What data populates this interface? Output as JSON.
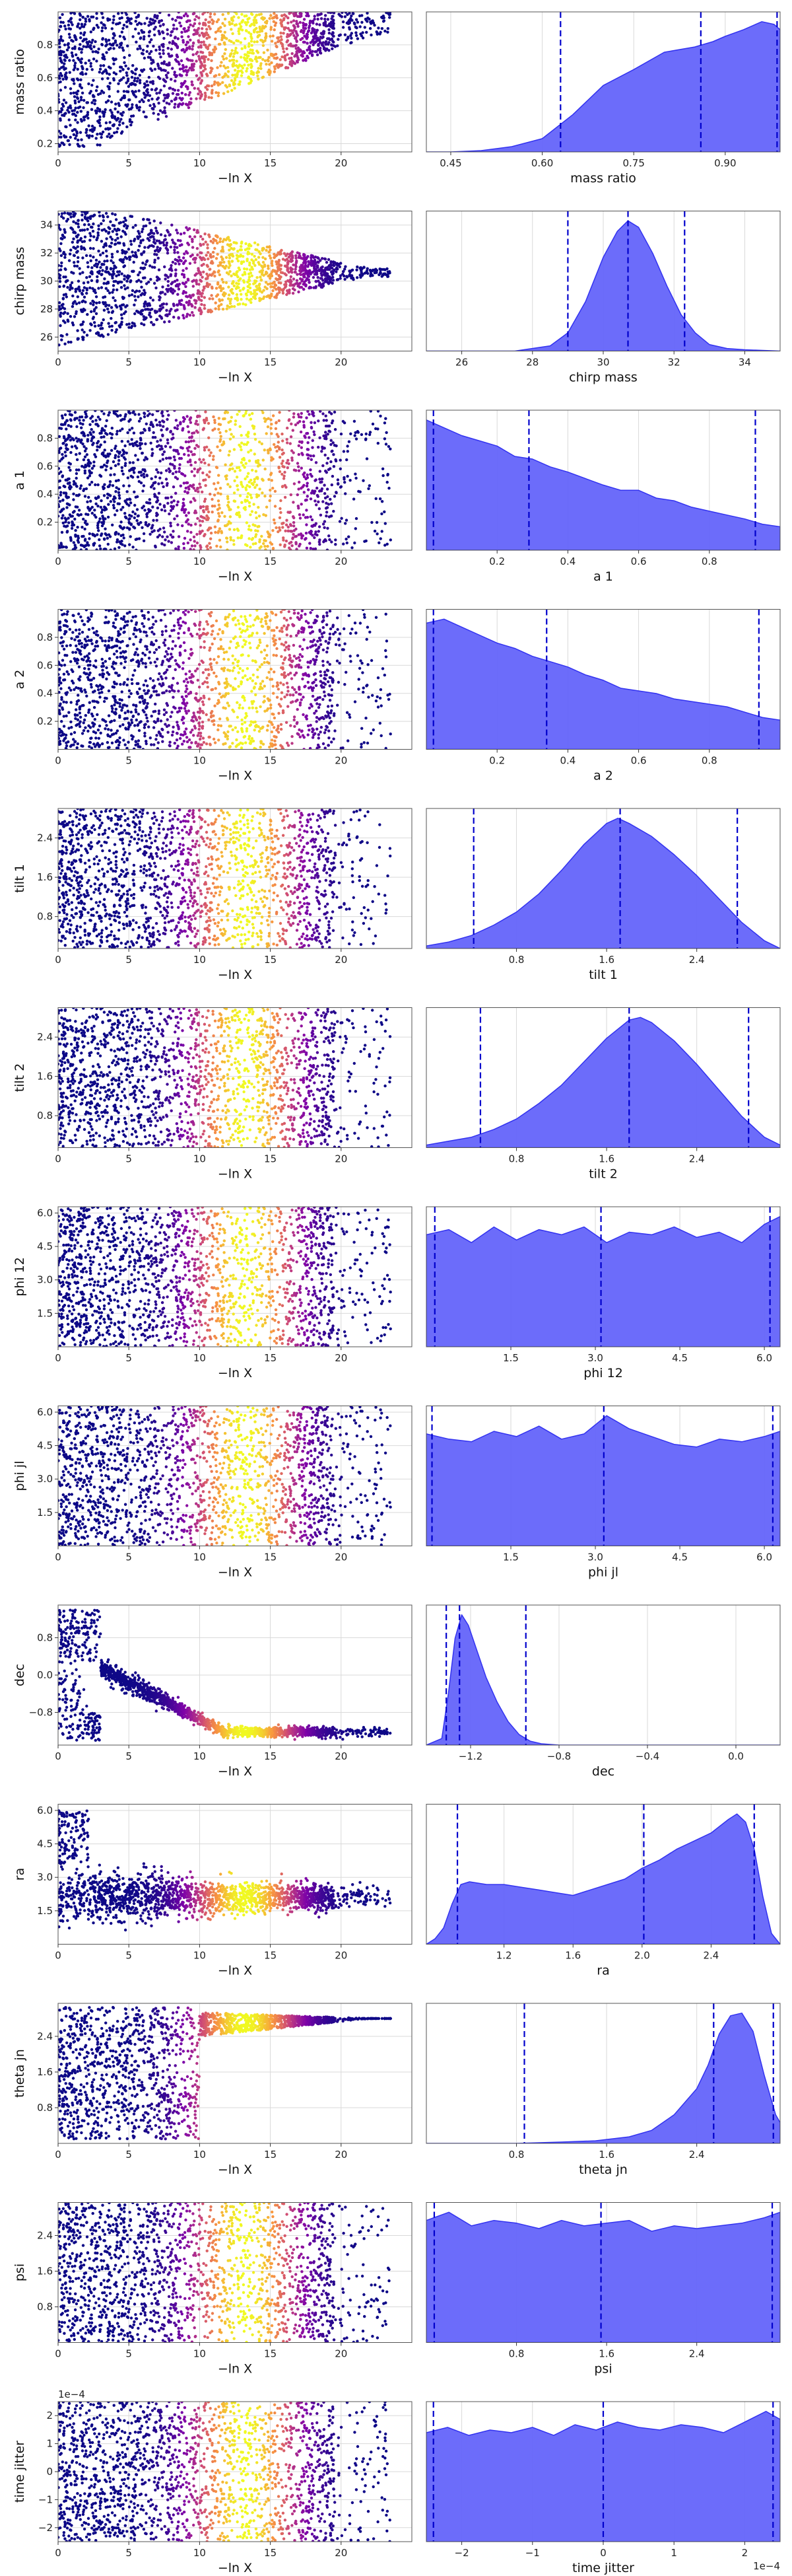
{
  "figure": {
    "x_axis_label": "−ln X",
    "colors": {
      "axes_bg": "#ffffff",
      "frame": "#555555",
      "grid": "#d9d9d9",
      "kde_fill": "#6464fa",
      "kde_edge": "#3232f0",
      "quantile": "#0000cc"
    },
    "trace_x_ticks": [
      "0",
      "5",
      "10",
      "15",
      "20"
    ],
    "trace_x_range": [
      0,
      25
    ]
  },
  "chart_data": [
    {
      "param": "mass ratio",
      "type": "area",
      "trace_ylabel": "mass ratio",
      "trace": {
        "ylim": [
          0.15,
          1.0
        ],
        "yticks": [
          "0.2",
          "0.4",
          "0.6",
          "0.8"
        ],
        "ytick_vals": [
          0.2,
          0.4,
          0.6,
          0.8
        ],
        "shape": "wedge_up",
        "lo_start": 0.62,
        "hi_start": 1.0,
        "lo_end": 0.95,
        "hi_end": 1.0
      },
      "kde": {
        "xlabel": "mass ratio",
        "xlim": [
          0.41,
          0.99
        ],
        "xticks": [
          "0.45",
          "0.60",
          "0.75",
          "0.90"
        ],
        "xtick_vals": [
          0.45,
          0.6,
          0.75,
          0.9
        ],
        "x": [
          0.41,
          0.45,
          0.5,
          0.55,
          0.6,
          0.65,
          0.7,
          0.75,
          0.8,
          0.85,
          0.88,
          0.9,
          0.93,
          0.96,
          0.98,
          0.99
        ],
        "density": [
          0.0,
          0.0,
          0.01,
          0.04,
          0.1,
          0.28,
          0.5,
          0.62,
          0.75,
          0.79,
          0.83,
          0.87,
          0.92,
          0.98,
          0.96,
          0.92
        ],
        "quantiles": [
          0.63,
          0.86,
          0.985
        ]
      }
    },
    {
      "param": "chirp mass",
      "type": "area",
      "trace_ylabel": "chirp mass",
      "trace": {
        "ylim": [
          25.0,
          35.0
        ],
        "yticks": [
          "26",
          "28",
          "30",
          "32",
          "34"
        ],
        "ytick_vals": [
          26,
          28,
          30,
          32,
          34
        ],
        "shape": "funnel",
        "lo_start": 25.0,
        "hi_start": 35.0,
        "lo_end": 30.3,
        "hi_end": 30.9
      },
      "kde": {
        "xlabel": "chirp mass",
        "xlim": [
          25.0,
          35.0
        ],
        "xticks": [
          "26",
          "28",
          "30",
          "32",
          "34"
        ],
        "xtick_vals": [
          26,
          28,
          30,
          32,
          34
        ],
        "x": [
          25,
          27.5,
          28.5,
          29.0,
          29.5,
          30.0,
          30.4,
          30.7,
          31.0,
          31.4,
          31.8,
          32.2,
          32.6,
          33.0,
          33.5,
          34,
          35
        ],
        "density": [
          0.0,
          0.0,
          0.04,
          0.14,
          0.38,
          0.72,
          0.92,
          1.0,
          0.95,
          0.75,
          0.5,
          0.28,
          0.14,
          0.05,
          0.02,
          0.01,
          0.0
        ],
        "quantiles": [
          29.0,
          30.7,
          32.3
        ]
      }
    },
    {
      "param": "a 1",
      "type": "area",
      "trace_ylabel": "a 1",
      "trace": {
        "ylim": [
          0.0,
          1.0
        ],
        "yticks": [
          "0.2",
          "0.4",
          "0.6",
          "0.8"
        ],
        "ytick_vals": [
          0.2,
          0.4,
          0.6,
          0.8
        ],
        "shape": "uniform"
      },
      "kde": {
        "xlabel": "a 1",
        "xlim": [
          0.0,
          1.0
        ],
        "xticks": [
          "0.2",
          "0.4",
          "0.6",
          "0.8"
        ],
        "xtick_vals": [
          0.2,
          0.4,
          0.6,
          0.8
        ],
        "x": [
          0.0,
          0.05,
          0.1,
          0.15,
          0.2,
          0.25,
          0.3,
          0.35,
          0.4,
          0.45,
          0.5,
          0.55,
          0.6,
          0.65,
          0.7,
          0.75,
          0.8,
          0.85,
          0.9,
          0.95,
          1.0
        ],
        "density": [
          1.0,
          0.94,
          0.88,
          0.84,
          0.8,
          0.72,
          0.7,
          0.64,
          0.6,
          0.55,
          0.5,
          0.46,
          0.46,
          0.4,
          0.38,
          0.33,
          0.3,
          0.27,
          0.24,
          0.2,
          0.18
        ],
        "quantiles": [
          0.02,
          0.29,
          0.93
        ]
      }
    },
    {
      "param": "a 2",
      "type": "area",
      "trace_ylabel": "a 2",
      "trace": {
        "ylim": [
          0.0,
          1.0
        ],
        "yticks": [
          "0.2",
          "0.4",
          "0.6",
          "0.8"
        ],
        "ytick_vals": [
          0.2,
          0.4,
          0.6,
          0.8
        ],
        "shape": "uniform"
      },
      "kde": {
        "xlabel": "a 2",
        "xlim": [
          0.0,
          1.0
        ],
        "xticks": [
          "0.2",
          "0.4",
          "0.6",
          "0.8"
        ],
        "xtick_vals": [
          0.2,
          0.4,
          0.6,
          0.8
        ],
        "x": [
          0.0,
          0.05,
          0.1,
          0.15,
          0.2,
          0.25,
          0.3,
          0.35,
          0.4,
          0.45,
          0.5,
          0.55,
          0.6,
          0.65,
          0.7,
          0.75,
          0.8,
          0.85,
          0.9,
          0.95,
          1.0
        ],
        "density": [
          0.95,
          0.98,
          0.92,
          0.86,
          0.8,
          0.76,
          0.7,
          0.66,
          0.62,
          0.56,
          0.52,
          0.46,
          0.44,
          0.42,
          0.38,
          0.36,
          0.34,
          0.32,
          0.28,
          0.24,
          0.22
        ],
        "quantiles": [
          0.02,
          0.34,
          0.94
        ]
      }
    },
    {
      "param": "tilt 1",
      "type": "area",
      "trace_ylabel": "tilt 1",
      "trace": {
        "ylim": [
          0.15,
          3.0
        ],
        "yticks": [
          "0.8",
          "1.6",
          "2.4"
        ],
        "ytick_vals": [
          0.8,
          1.6,
          2.4
        ],
        "shape": "uniform"
      },
      "kde": {
        "xlabel": "tilt 1",
        "xlim": [
          0.0,
          3.14
        ],
        "xticks": [
          "0.8",
          "1.6",
          "2.4"
        ],
        "xtick_vals": [
          0.8,
          1.6,
          2.4
        ],
        "x": [
          0.0,
          0.2,
          0.4,
          0.6,
          0.8,
          1.0,
          1.2,
          1.4,
          1.6,
          1.7,
          1.8,
          2.0,
          2.2,
          2.4,
          2.6,
          2.8,
          3.0,
          3.14
        ],
        "density": [
          0.02,
          0.05,
          0.1,
          0.18,
          0.28,
          0.42,
          0.6,
          0.8,
          0.96,
          1.0,
          0.96,
          0.86,
          0.72,
          0.56,
          0.38,
          0.2,
          0.06,
          0.0
        ],
        "quantiles": [
          0.42,
          1.72,
          2.76
        ]
      }
    },
    {
      "param": "tilt 2",
      "type": "area",
      "trace_ylabel": "tilt 2",
      "trace": {
        "ylim": [
          0.15,
          3.0
        ],
        "yticks": [
          "0.8",
          "1.6",
          "2.4"
        ],
        "ytick_vals": [
          0.8,
          1.6,
          2.4
        ],
        "shape": "uniform"
      },
      "kde": {
        "xlabel": "tilt 2",
        "xlim": [
          0.0,
          3.14
        ],
        "xticks": [
          "0.8",
          "1.6",
          "2.4"
        ],
        "xtick_vals": [
          0.8,
          1.6,
          2.4
        ],
        "x": [
          0.0,
          0.2,
          0.4,
          0.6,
          0.8,
          1.0,
          1.2,
          1.4,
          1.6,
          1.8,
          1.9,
          2.0,
          2.2,
          2.4,
          2.6,
          2.8,
          3.0,
          3.14
        ],
        "density": [
          0.02,
          0.05,
          0.08,
          0.14,
          0.22,
          0.34,
          0.48,
          0.66,
          0.84,
          0.98,
          1.0,
          0.96,
          0.82,
          0.64,
          0.44,
          0.24,
          0.08,
          0.02
        ],
        "quantiles": [
          0.48,
          1.8,
          2.86
        ]
      }
    },
    {
      "param": "phi 12",
      "type": "area",
      "trace_ylabel": "phi 12",
      "trace": {
        "ylim": [
          0.0,
          6.28
        ],
        "yticks": [
          "1.5",
          "3.0",
          "4.5",
          "6.0"
        ],
        "ytick_vals": [
          1.5,
          3.0,
          4.5,
          6.0
        ],
        "shape": "uniform"
      },
      "kde": {
        "xlabel": "phi 12",
        "xlim": [
          0.0,
          6.28
        ],
        "xticks": [
          "1.5",
          "3.0",
          "4.5",
          "6.0"
        ],
        "xtick_vals": [
          1.5,
          3.0,
          4.5,
          6.0
        ],
        "x": [
          0.0,
          0.4,
          0.8,
          1.2,
          1.6,
          2.0,
          2.4,
          2.8,
          3.2,
          3.6,
          4.0,
          4.4,
          4.8,
          5.2,
          5.6,
          6.0,
          6.28
        ],
        "density": [
          0.86,
          0.9,
          0.8,
          0.92,
          0.82,
          0.9,
          0.86,
          0.92,
          0.8,
          0.88,
          0.86,
          0.92,
          0.84,
          0.88,
          0.8,
          0.94,
          1.0
        ],
        "quantiles": [
          0.15,
          3.1,
          6.1
        ]
      }
    },
    {
      "param": "phi jl",
      "type": "area",
      "trace_ylabel": "phi jl",
      "trace": {
        "ylim": [
          0.0,
          6.28
        ],
        "yticks": [
          "1.5",
          "3.0",
          "4.5",
          "6.0"
        ],
        "ytick_vals": [
          1.5,
          3.0,
          4.5,
          6.0
        ],
        "shape": "uniform"
      },
      "kde": {
        "xlabel": "phi jl",
        "xlim": [
          0.0,
          6.28
        ],
        "xticks": [
          "1.5",
          "3.0",
          "4.5",
          "6.0"
        ],
        "xtick_vals": [
          1.5,
          3.0,
          4.5,
          6.0
        ],
        "x": [
          0.0,
          0.4,
          0.8,
          1.2,
          1.6,
          2.0,
          2.4,
          2.8,
          3.2,
          3.6,
          4.0,
          4.4,
          4.8,
          5.2,
          5.6,
          6.0,
          6.28
        ],
        "density": [
          0.86,
          0.82,
          0.8,
          0.88,
          0.84,
          0.92,
          0.82,
          0.86,
          1.0,
          0.9,
          0.84,
          0.78,
          0.76,
          0.82,
          0.8,
          0.84,
          0.88
        ],
        "quantiles": [
          0.1,
          3.15,
          6.15
        ]
      }
    },
    {
      "param": "dec",
      "type": "area",
      "trace_ylabel": "dec",
      "trace": {
        "ylim": [
          -1.5,
          1.5
        ],
        "yticks": [
          "−0.8",
          "0.0",
          "0.8"
        ],
        "ytick_vals": [
          -0.8,
          0.0,
          0.8
        ],
        "shape": "dec"
      },
      "kde": {
        "xlabel": "dec",
        "xlim": [
          -1.4,
          0.2
        ],
        "xticks": [
          "−1.2",
          "−0.8",
          "−0.4",
          "0.0"
        ],
        "xtick_vals": [
          -1.2,
          -0.8,
          -0.4,
          0.0
        ],
        "x": [
          -1.4,
          -1.33,
          -1.3,
          -1.27,
          -1.24,
          -1.21,
          -1.17,
          -1.13,
          -1.08,
          -1.03,
          -0.98,
          -0.93,
          -0.88,
          -0.8,
          0.2
        ],
        "density": [
          0.0,
          0.05,
          0.4,
          0.82,
          1.0,
          0.92,
          0.72,
          0.52,
          0.33,
          0.18,
          0.08,
          0.03,
          0.01,
          0.0,
          0.0
        ],
        "quantiles": [
          -1.31,
          -1.25,
          -0.95
        ]
      }
    },
    {
      "param": "ra",
      "type": "area",
      "trace_ylabel": "ra",
      "trace": {
        "ylim": [
          0.0,
          6.28
        ],
        "yticks": [
          "1.5",
          "3.0",
          "4.5",
          "6.0"
        ],
        "ytick_vals": [
          1.5,
          3.0,
          4.5,
          6.0
        ],
        "shape": "ra"
      },
      "kde": {
        "xlabel": "ra",
        "xlim": [
          0.75,
          2.8
        ],
        "xticks": [
          "1.2",
          "1.6",
          "2.0",
          "2.4"
        ],
        "xtick_vals": [
          1.2,
          1.6,
          2.0,
          2.4
        ],
        "x": [
          0.75,
          0.8,
          0.85,
          0.9,
          0.95,
          1.0,
          1.1,
          1.2,
          1.3,
          1.4,
          1.5,
          1.6,
          1.7,
          1.8,
          1.9,
          2.0,
          2.1,
          2.2,
          2.3,
          2.4,
          2.5,
          2.55,
          2.6,
          2.65,
          2.7,
          2.75,
          2.8
        ],
        "density": [
          0.0,
          0.04,
          0.12,
          0.3,
          0.44,
          0.46,
          0.44,
          0.44,
          0.42,
          0.4,
          0.38,
          0.36,
          0.4,
          0.44,
          0.48,
          0.56,
          0.62,
          0.7,
          0.76,
          0.82,
          0.92,
          0.96,
          0.9,
          0.7,
          0.35,
          0.08,
          0.0
        ],
        "quantiles": [
          0.93,
          2.01,
          2.65
        ]
      }
    },
    {
      "param": "theta jn",
      "type": "area",
      "trace_ylabel": "theta jn",
      "trace": {
        "ylim": [
          0.0,
          3.14
        ],
        "yticks": [
          "0.8",
          "1.6",
          "2.4"
        ],
        "ytick_vals": [
          0.8,
          1.6,
          2.4
        ],
        "shape": "theta"
      },
      "kde": {
        "xlabel": "theta jn",
        "xlim": [
          0.0,
          3.14
        ],
        "xticks": [
          "0.8",
          "1.6",
          "2.4"
        ],
        "xtick_vals": [
          0.8,
          1.6,
          2.4
        ],
        "x": [
          0.0,
          0.8,
          1.2,
          1.5,
          1.8,
          2.0,
          2.2,
          2.4,
          2.5,
          2.6,
          2.7,
          2.8,
          2.9,
          3.0,
          3.1,
          3.14
        ],
        "density": [
          0.0,
          0.0,
          0.01,
          0.02,
          0.05,
          0.1,
          0.22,
          0.42,
          0.6,
          0.84,
          0.98,
          1.0,
          0.86,
          0.52,
          0.22,
          0.16
        ],
        "quantiles": [
          0.87,
          2.55,
          3.08
        ]
      }
    },
    {
      "param": "psi",
      "type": "area",
      "trace_ylabel": "psi",
      "trace": {
        "ylim": [
          0.0,
          3.14
        ],
        "yticks": [
          "0.8",
          "1.6",
          "2.4"
        ],
        "ytick_vals": [
          0.8,
          1.6,
          2.4
        ],
        "shape": "uniform"
      },
      "kde": {
        "xlabel": "psi",
        "xlim": [
          0.0,
          3.14
        ],
        "xticks": [
          "0.8",
          "1.6",
          "2.4"
        ],
        "xtick_vals": [
          0.8,
          1.6,
          2.4
        ],
        "x": [
          0.0,
          0.2,
          0.4,
          0.6,
          0.8,
          1.0,
          1.2,
          1.4,
          1.6,
          1.8,
          2.0,
          2.2,
          2.4,
          2.6,
          2.8,
          3.0,
          3.14
        ],
        "density": [
          0.9,
          0.96,
          0.86,
          0.9,
          0.88,
          0.84,
          0.9,
          0.86,
          0.88,
          0.9,
          0.82,
          0.86,
          0.84,
          0.86,
          0.88,
          0.92,
          0.96
        ],
        "quantiles": [
          0.07,
          1.55,
          3.07
        ]
      }
    },
    {
      "param": "time jitter",
      "type": "area",
      "trace_ylabel": "time jitter",
      "trace": {
        "ylim": [
          -2.5,
          2.5
        ],
        "yticks": [
          "−2",
          "−1",
          "0",
          "1",
          "2"
        ],
        "ytick_vals": [
          -2,
          -1,
          0,
          1,
          2
        ],
        "shape": "uniform",
        "offset_text": "1e−4"
      },
      "kde": {
        "xlabel": "time jitter",
        "xlim": [
          -2.5,
          2.5
        ],
        "xticks": [
          "−2",
          "−1",
          "0",
          "1",
          "2"
        ],
        "xtick_vals": [
          -2,
          -1,
          0,
          1,
          2
        ],
        "offset_text": "1e−4",
        "x": [
          -2.5,
          -2.2,
          -1.9,
          -1.6,
          -1.3,
          -1.0,
          -0.7,
          -0.4,
          -0.1,
          0.2,
          0.5,
          0.8,
          1.1,
          1.4,
          1.7,
          2.0,
          2.3,
          2.5
        ],
        "density": [
          0.82,
          0.86,
          0.8,
          0.84,
          0.82,
          0.86,
          0.8,
          0.88,
          0.84,
          0.9,
          0.86,
          0.84,
          0.88,
          0.86,
          0.82,
          0.9,
          0.98,
          0.92
        ],
        "quantiles": [
          -2.4,
          0.0,
          2.4
        ]
      }
    }
  ]
}
